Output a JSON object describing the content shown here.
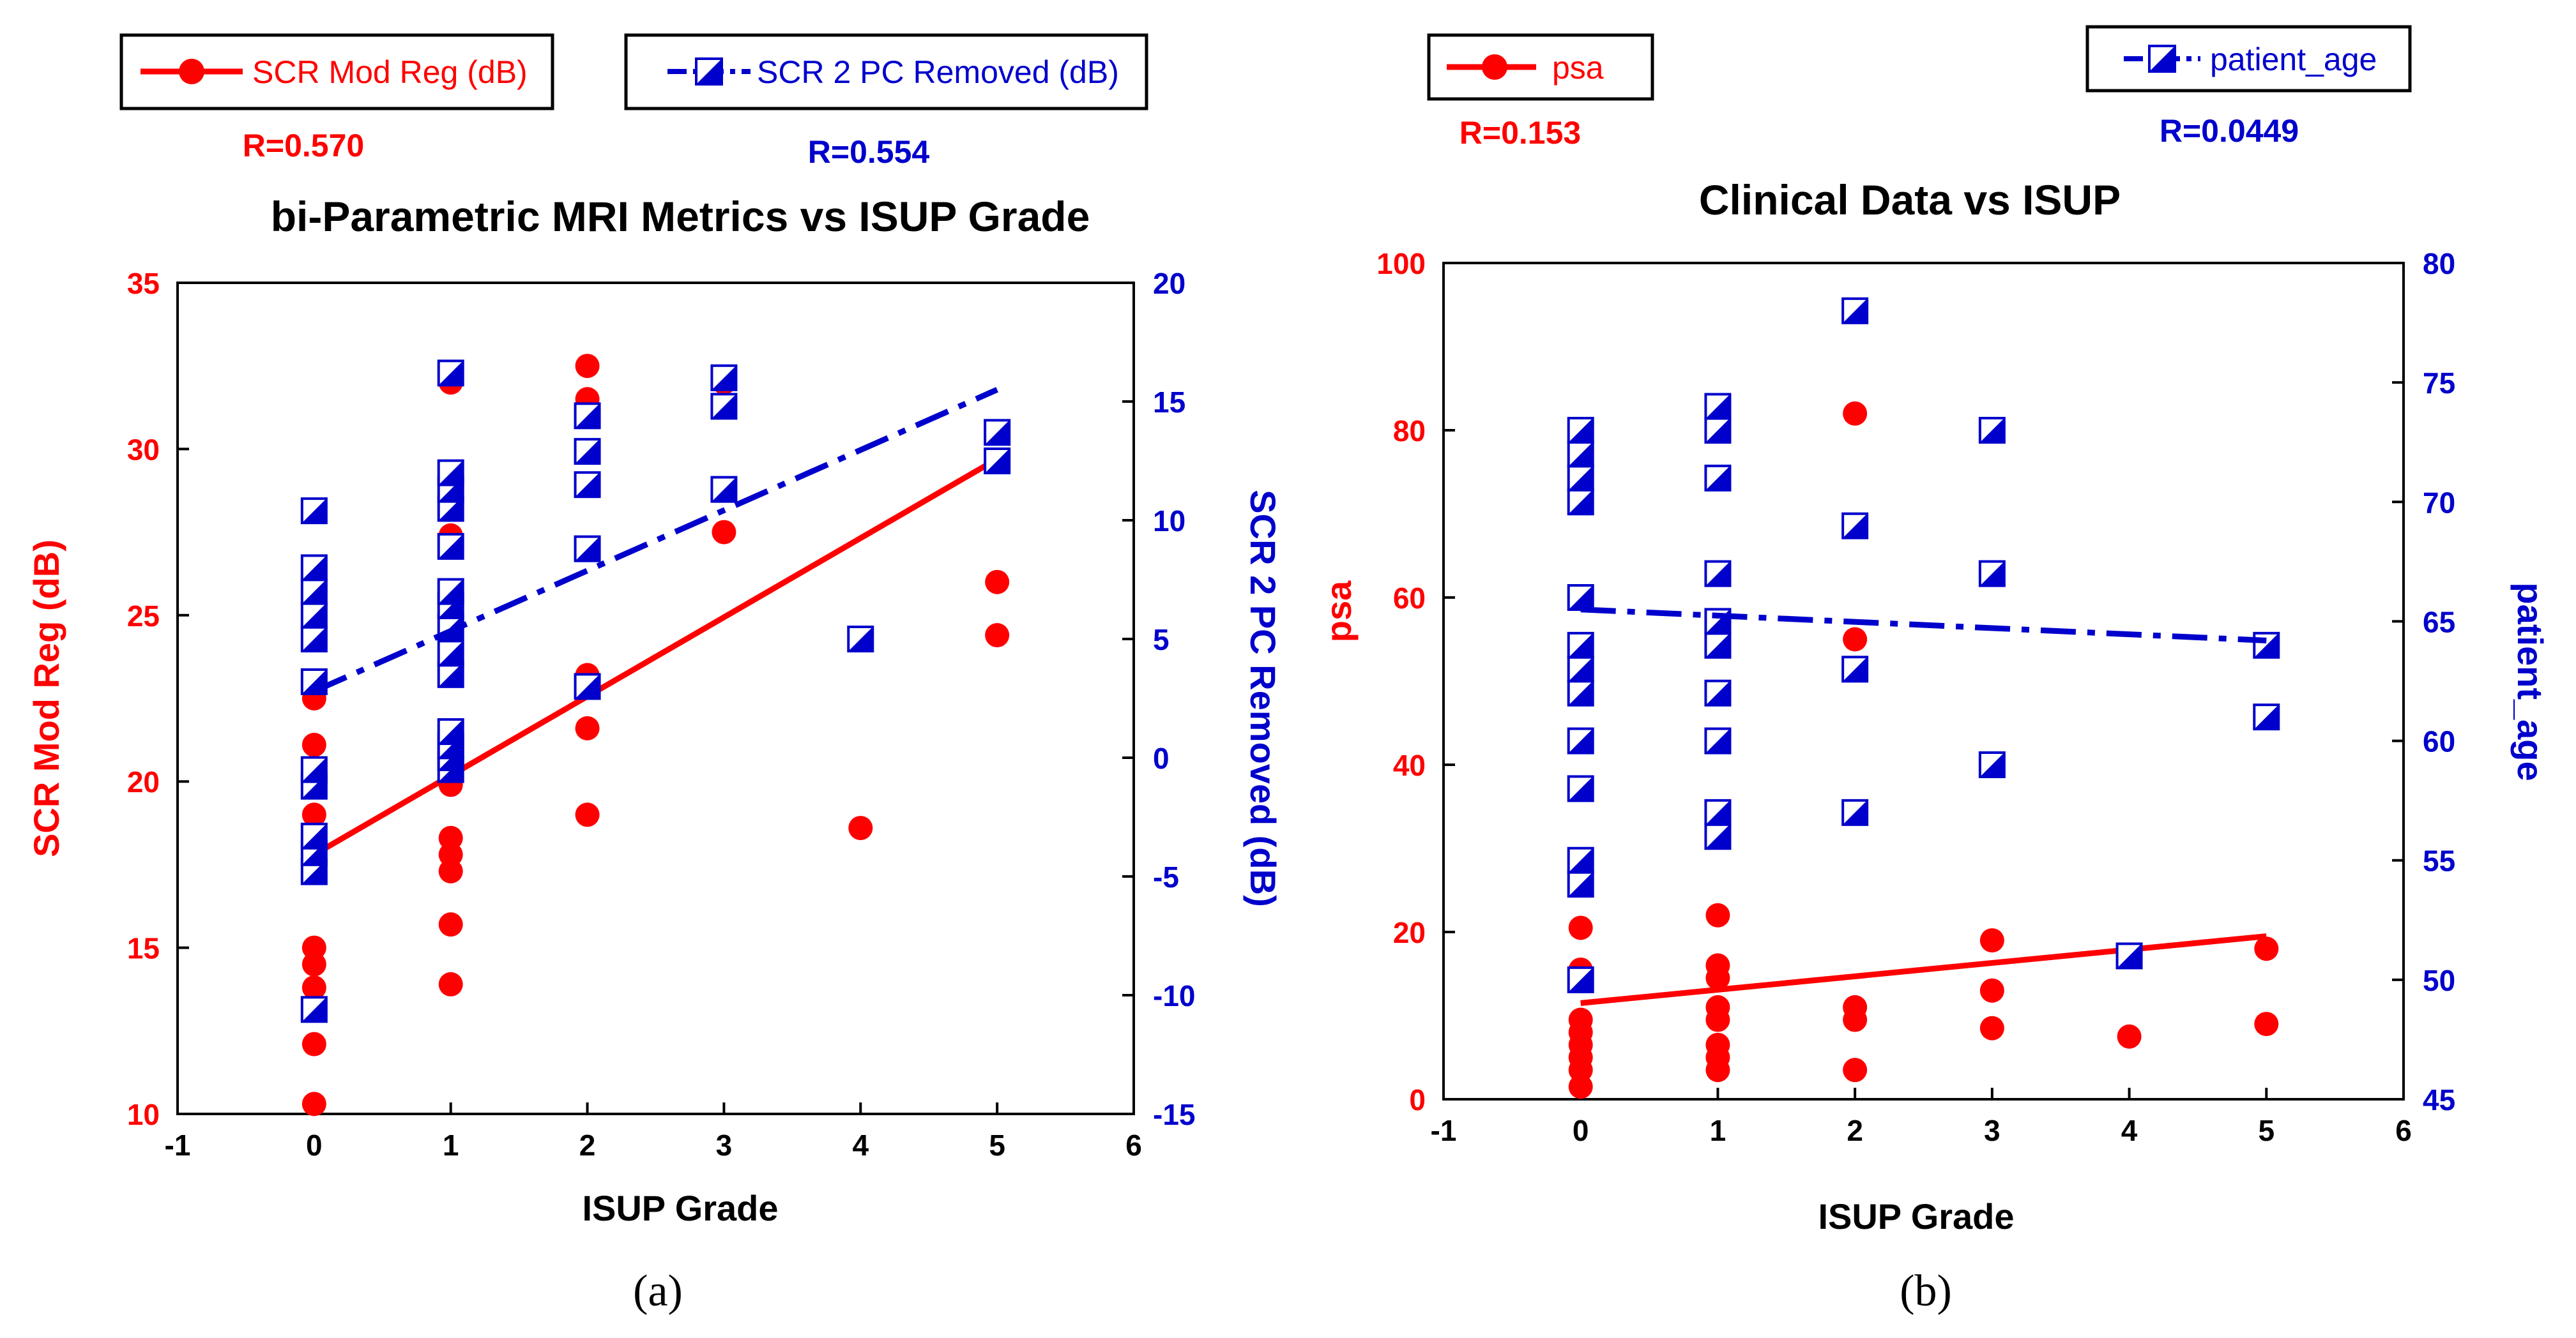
{
  "colors": {
    "red": "#ff0000",
    "blue": "#0000cc",
    "black": "#000000"
  },
  "chart_data": [
    {
      "type": "scatter",
      "panel_caption": "(a)",
      "title": "bi-Parametric MRI Metrics vs ISUP Grade",
      "xlabel": "ISUP Grade",
      "ylabel_left": "SCR Mod Reg (dB)",
      "ylabel_right": "SCR 2 PC Removed (dB)",
      "xlim": [
        -1,
        6
      ],
      "ylim_left": [
        10,
        35
      ],
      "ylim_right": [
        -15,
        20
      ],
      "x_ticks": [
        "-1",
        "0",
        "1",
        "2",
        "3",
        "4",
        "5",
        "6"
      ],
      "y_ticks_left": [
        "10",
        "15",
        "20",
        "25",
        "30",
        "35"
      ],
      "y_ticks_right": [
        "-15",
        "-10",
        "-5",
        "0",
        "5",
        "10",
        "15",
        "20"
      ],
      "legend_position": "top",
      "series": [
        {
          "name": "SCR Mod Reg (dB)",
          "axis": "left",
          "color": "red",
          "marker": "circle",
          "line_style": "solid",
          "r_label": "R=0.570",
          "fit": [
            [
              0,
              17.8
            ],
            [
              5,
              29.7
            ]
          ],
          "points": [
            [
              0,
              10.3
            ],
            [
              0,
              12.1
            ],
            [
              0,
              13.8
            ],
            [
              0,
              14.5
            ],
            [
              0,
              15.0
            ],
            [
              0,
              18.5
            ],
            [
              0,
              19.0
            ],
            [
              0,
              21.1
            ],
            [
              0,
              22.5
            ],
            [
              1,
              13.9
            ],
            [
              1,
              15.7
            ],
            [
              1,
              17.3
            ],
            [
              1,
              17.8
            ],
            [
              1,
              18.3
            ],
            [
              1,
              19.9
            ],
            [
              1,
              20.1
            ],
            [
              1,
              24.7
            ],
            [
              1,
              27.4
            ],
            [
              1,
              32.0
            ],
            [
              2,
              19.0
            ],
            [
              2,
              21.6
            ],
            [
              2,
              23.2
            ],
            [
              2,
              31.5
            ],
            [
              2,
              32.5
            ],
            [
              3,
              27.5
            ],
            [
              3,
              32.0
            ],
            [
              4,
              18.6
            ],
            [
              5,
              24.4
            ],
            [
              5,
              26.0
            ]
          ]
        },
        {
          "name": "SCR 2 PC Removed (dB)",
          "axis": "right",
          "color": "blue",
          "marker": "half-filled-square",
          "line_style": "dash-dot",
          "r_label": "R=0.554",
          "fit": [
            [
              0,
              2.8
            ],
            [
              5,
              15.5
            ]
          ],
          "points": [
            [
              0,
              -10.6
            ],
            [
              0,
              -4.8
            ],
            [
              0,
              -4.0
            ],
            [
              0,
              -3.3
            ],
            [
              0,
              -1.2
            ],
            [
              0,
              -0.5
            ],
            [
              0,
              3.2
            ],
            [
              0,
              5.0
            ],
            [
              0,
              6.0
            ],
            [
              0,
              7.0
            ],
            [
              0,
              8.0
            ],
            [
              0,
              10.4
            ],
            [
              1,
              -0.5
            ],
            [
              1,
              0.0
            ],
            [
              1,
              0.5
            ],
            [
              1,
              1.1
            ],
            [
              1,
              3.5
            ],
            [
              1,
              4.4
            ],
            [
              1,
              5.5
            ],
            [
              1,
              6.4
            ],
            [
              1,
              7.0
            ],
            [
              1,
              8.9
            ],
            [
              1,
              10.5
            ],
            [
              1,
              11.3
            ],
            [
              1,
              12.0
            ],
            [
              1,
              16.2
            ],
            [
              2,
              3.0
            ],
            [
              2,
              8.8
            ],
            [
              2,
              11.5
            ],
            [
              2,
              12.9
            ],
            [
              2,
              14.4
            ],
            [
              3,
              11.3
            ],
            [
              3,
              14.8
            ],
            [
              3,
              16.0
            ],
            [
              4,
              5.0
            ],
            [
              5,
              12.5
            ],
            [
              5,
              13.7
            ]
          ]
        }
      ]
    },
    {
      "type": "scatter",
      "panel_caption": "(b)",
      "title": "Clinical Data vs ISUP",
      "xlabel": "ISUP Grade",
      "ylabel_left": "psa",
      "ylabel_right": "patient_age",
      "xlim": [
        -1,
        6
      ],
      "ylim_left": [
        0,
        100
      ],
      "ylim_right": [
        45,
        80
      ],
      "x_ticks": [
        "-1",
        "0",
        "1",
        "2",
        "3",
        "4",
        "5",
        "6"
      ],
      "y_ticks_left": [
        "0",
        "20",
        "40",
        "60",
        "80",
        "100"
      ],
      "y_ticks_right": [
        "45",
        "50",
        "55",
        "60",
        "65",
        "70",
        "75",
        "80"
      ],
      "legend_position": "top",
      "series": [
        {
          "name": "psa",
          "axis": "left",
          "color": "red",
          "marker": "circle",
          "line_style": "solid",
          "r_label": "R=0.153",
          "fit": [
            [
              0,
              11.5
            ],
            [
              5,
              19.5
            ]
          ],
          "points": [
            [
              0,
              1.5
            ],
            [
              0,
              3.5
            ],
            [
              0,
              5.0
            ],
            [
              0,
              6.5
            ],
            [
              0,
              8.0
            ],
            [
              0,
              9.5
            ],
            [
              0,
              15.5
            ],
            [
              0,
              20.5
            ],
            [
              1,
              3.5
            ],
            [
              1,
              5.0
            ],
            [
              1,
              6.5
            ],
            [
              1,
              9.5
            ],
            [
              1,
              11.0
            ],
            [
              1,
              14.5
            ],
            [
              1,
              16.0
            ],
            [
              1,
              22.0
            ],
            [
              2,
              3.5
            ],
            [
              2,
              9.5
            ],
            [
              2,
              11.0
            ],
            [
              2,
              55.0
            ],
            [
              2,
              82.0
            ],
            [
              3,
              8.5
            ],
            [
              3,
              13.0
            ],
            [
              3,
              19.0
            ],
            [
              4,
              7.5
            ],
            [
              5,
              9.0
            ],
            [
              5,
              18.0
            ]
          ]
        },
        {
          "name": "patient_age",
          "axis": "right",
          "color": "blue",
          "marker": "half-filled-square",
          "line_style": "dash-dot",
          "r_label": "R=0.0449",
          "fit": [
            [
              0,
              65.5
            ],
            [
              5,
              64.2
            ]
          ],
          "points": [
            [
              0,
              50
            ],
            [
              0,
              54
            ],
            [
              0,
              55
            ],
            [
              0,
              58
            ],
            [
              0,
              60
            ],
            [
              0,
              62
            ],
            [
              0,
              63
            ],
            [
              0,
              64
            ],
            [
              0,
              66
            ],
            [
              0,
              70
            ],
            [
              0,
              71
            ],
            [
              0,
              72
            ],
            [
              0,
              73
            ],
            [
              1,
              56
            ],
            [
              1,
              57
            ],
            [
              1,
              60
            ],
            [
              1,
              62
            ],
            [
              1,
              64
            ],
            [
              1,
              65
            ],
            [
              1,
              67
            ],
            [
              1,
              71
            ],
            [
              1,
              73
            ],
            [
              1,
              74
            ],
            [
              2,
              57
            ],
            [
              2,
              63
            ],
            [
              2,
              69
            ],
            [
              2,
              78
            ],
            [
              3,
              59
            ],
            [
              3,
              67
            ],
            [
              3,
              73
            ],
            [
              4,
              51
            ],
            [
              5,
              61
            ],
            [
              5,
              64
            ]
          ]
        }
      ]
    }
  ]
}
